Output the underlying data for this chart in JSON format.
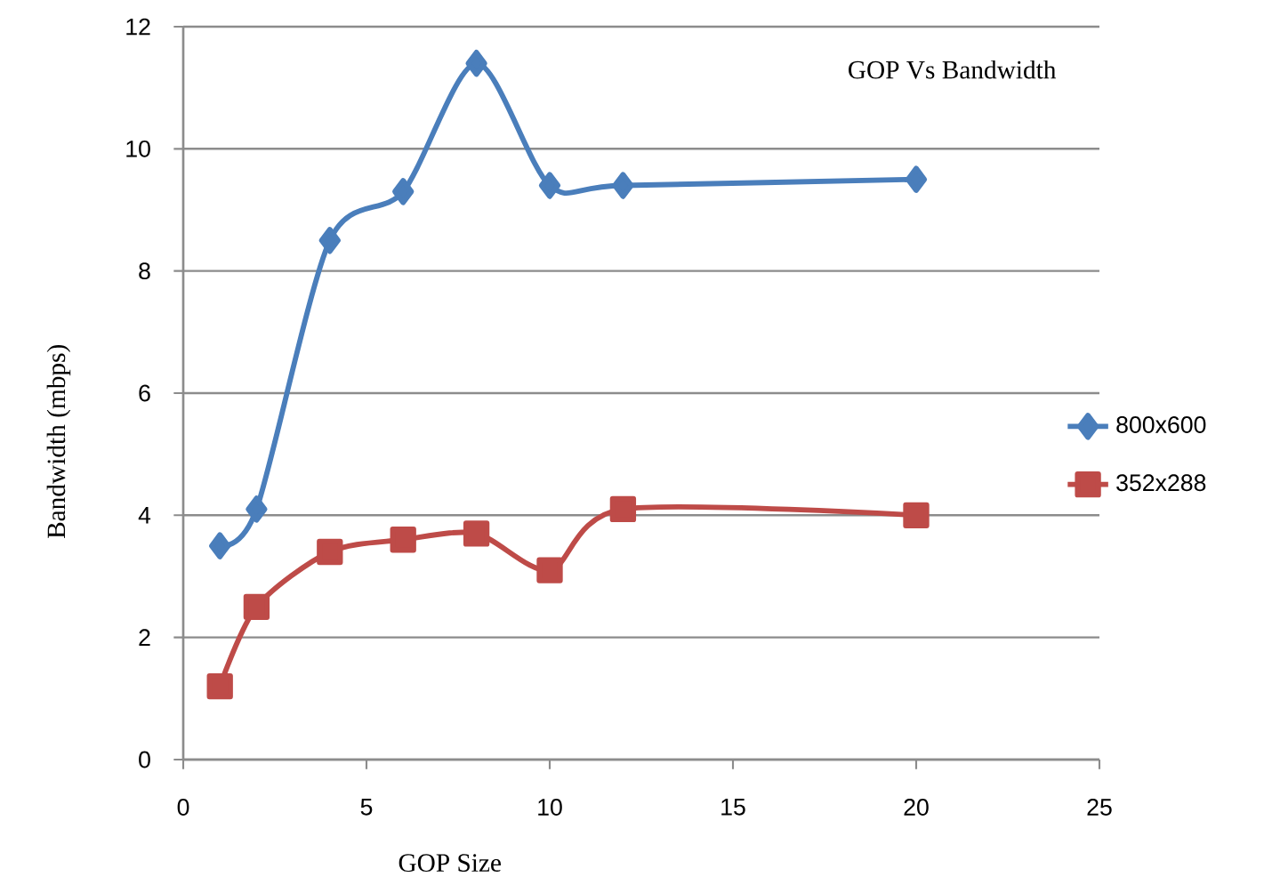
{
  "chart_data": {
    "type": "line",
    "title": "GOP Vs Bandwidth",
    "xlabel": "GOP Size",
    "ylabel": "Bandwidth (mbps)",
    "x": [
      1,
      2,
      4,
      6,
      8,
      10,
      12,
      20
    ],
    "series": [
      {
        "name": "800x600",
        "color": "#4a7ebb",
        "marker": "diamond",
        "values": [
          3.5,
          4.1,
          8.5,
          9.3,
          11.4,
          9.4,
          9.4,
          9.5
        ]
      },
      {
        "name": "352x288",
        "color": "#be4b48",
        "marker": "square",
        "values": [
          1.2,
          2.5,
          3.4,
          3.6,
          3.7,
          3.1,
          4.1,
          4.0
        ]
      }
    ],
    "xlim": [
      0,
      25
    ],
    "xticks": [
      0,
      5,
      10,
      15,
      20,
      25
    ],
    "ylim": [
      0,
      12
    ],
    "yticks": [
      0,
      2,
      4,
      6,
      8,
      10,
      12
    ],
    "grid": "y",
    "legend": "right",
    "line_style": "solid"
  }
}
